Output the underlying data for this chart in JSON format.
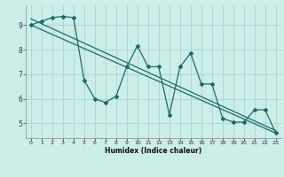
{
  "xlabel": "Humidex (Indice chaleur)",
  "background_color": "#cceee8",
  "grid_color": "#aad4ce",
  "line_color": "#1a6b6b",
  "xlim": [
    -0.5,
    23.5
  ],
  "ylim": [
    4.4,
    9.8
  ],
  "xticks": [
    0,
    1,
    2,
    3,
    4,
    5,
    6,
    7,
    8,
    9,
    10,
    11,
    12,
    13,
    14,
    15,
    16,
    17,
    18,
    19,
    20,
    21,
    22,
    23
  ],
  "yticks": [
    5,
    6,
    7,
    8,
    9
  ],
  "series1_x": [
    0,
    1,
    2,
    3,
    4,
    5,
    6,
    7,
    8,
    9,
    10,
    11,
    12,
    13,
    14,
    15,
    16,
    17,
    18,
    19,
    20,
    21,
    22,
    23
  ],
  "series1_y": [
    9.0,
    9.15,
    9.3,
    9.35,
    9.3,
    6.75,
    6.0,
    5.85,
    6.1,
    7.3,
    8.15,
    7.3,
    7.3,
    5.35,
    7.3,
    7.85,
    6.6,
    6.6,
    5.2,
    5.05,
    5.05,
    5.55,
    5.55,
    4.6
  ],
  "trend1_x": [
    0,
    23
  ],
  "trend1_y": [
    9.0,
    4.6
  ],
  "trend2_x": [
    0,
    23
  ],
  "trend2_y": [
    9.25,
    4.7
  ]
}
